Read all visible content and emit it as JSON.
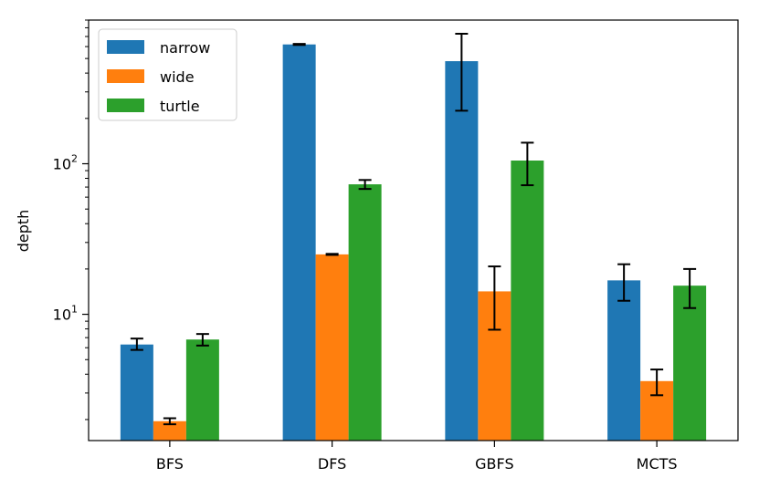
{
  "chart_data": {
    "type": "bar",
    "title": "",
    "xlabel": "",
    "ylabel": "depth",
    "yscale": "log",
    "ylim": [
      1.45,
      900
    ],
    "major_ticks": [
      {
        "value": 10,
        "base": "10",
        "exp": "1"
      },
      {
        "value": 100,
        "base": "10",
        "exp": "2"
      }
    ],
    "minor_ticks": [
      2,
      3,
      4,
      5,
      6,
      7,
      8,
      9,
      20,
      30,
      40,
      50,
      60,
      70,
      80,
      90,
      200,
      300,
      400,
      500,
      600,
      700,
      800,
      900
    ],
    "categories": [
      "BFS",
      "DFS",
      "GBFS",
      "MCTS"
    ],
    "series": [
      {
        "name": "narrow",
        "color": "#1f77b4",
        "values": [
          6.3,
          620,
          480,
          16.8
        ],
        "err_low": [
          5.8,
          615,
          225,
          12.3
        ],
        "err_high": [
          6.9,
          625,
          730,
          21.5
        ]
      },
      {
        "name": "wide",
        "color": "#ff7f0e",
        "values": [
          1.95,
          25,
          14.2,
          3.6
        ],
        "err_low": [
          1.86,
          24.8,
          7.9,
          2.9
        ],
        "err_high": [
          2.04,
          25.2,
          20.8,
          4.3
        ]
      },
      {
        "name": "turtle",
        "color": "#2ca02c",
        "values": [
          6.8,
          73,
          105,
          15.5
        ],
        "err_low": [
          6.2,
          68,
          72,
          11
        ],
        "err_high": [
          7.4,
          78,
          138,
          20
        ]
      }
    ],
    "legend": {
      "position": "top-left"
    }
  }
}
